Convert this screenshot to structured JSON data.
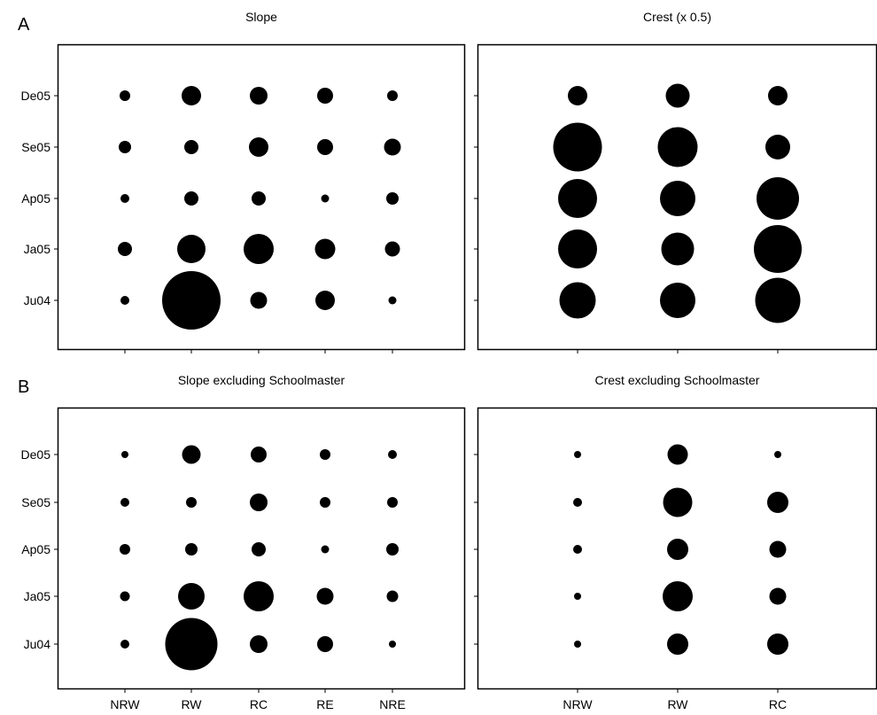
{
  "panel_letters": {
    "a": "A",
    "b": "B"
  },
  "chart_data": [
    {
      "type": "bubble",
      "title": "Slope",
      "x_categories": [
        "NRW",
        "RW",
        "RC",
        "RE",
        "NRE"
      ],
      "y_categories": [
        "De05",
        "Se05",
        "Ap05",
        "Ja05",
        "Ju04"
      ],
      "show_x_labels": false,
      "show_y_labels": true,
      "grid": false,
      "sizes": [
        [
          6,
          11,
          10,
          9,
          6
        ],
        [
          7,
          8,
          11,
          9,
          9.5
        ],
        [
          5,
          8,
          8,
          4.5,
          7
        ],
        [
          8,
          16,
          17,
          11.5,
          8.5
        ],
        [
          5,
          33,
          9.5,
          11,
          4.5
        ]
      ]
    },
    {
      "type": "bubble",
      "title": "Crest (x 0.5)",
      "x_categories": [
        "NRW",
        "RW",
        "RC"
      ],
      "y_categories": [
        "De05",
        "Se05",
        "Ap05",
        "Ja05",
        "Ju04"
      ],
      "show_x_labels": false,
      "show_y_labels": false,
      "grid": false,
      "sizes": [
        [
          11,
          13.5,
          11
        ],
        [
          27.5,
          22.5,
          14
        ],
        [
          22,
          20,
          24
        ],
        [
          22,
          18.5,
          27
        ],
        [
          20.5,
          20,
          25.5
        ]
      ]
    },
    {
      "type": "bubble",
      "title": "Slope excluding Schoolmaster",
      "x_categories": [
        "NRW",
        "RW",
        "RC",
        "RE",
        "NRE"
      ],
      "y_categories": [
        "De05",
        "Se05",
        "Ap05",
        "Ja05",
        "Ju04"
      ],
      "show_x_labels": true,
      "show_y_labels": true,
      "grid": false,
      "sizes": [
        [
          4,
          10.5,
          9,
          6,
          5
        ],
        [
          5,
          6,
          10,
          6,
          6
        ],
        [
          6,
          7,
          8,
          4.5,
          7
        ],
        [
          5.5,
          15,
          17,
          9.5,
          6.5
        ],
        [
          5,
          29.5,
          10,
          9,
          4
        ]
      ]
    },
    {
      "type": "bubble",
      "title": "Crest excluding Schoolmaster",
      "x_categories": [
        "NRW",
        "RW",
        "RC"
      ],
      "y_categories": [
        "De05",
        "Se05",
        "Ap05",
        "Ja05",
        "Ju04"
      ],
      "show_x_labels": true,
      "show_y_labels": false,
      "grid": false,
      "sizes": [
        [
          4,
          11.5,
          4
        ],
        [
          5,
          16.5,
          12
        ],
        [
          5,
          12,
          9.5
        ],
        [
          4,
          17,
          9.5
        ],
        [
          4,
          12,
          12
        ]
      ]
    }
  ]
}
